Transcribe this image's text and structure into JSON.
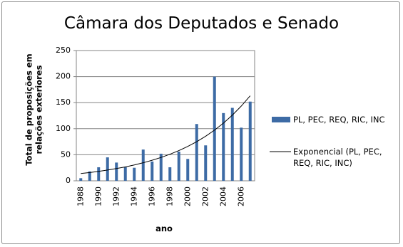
{
  "chart_data": {
    "type": "bar",
    "title": "Câmara dos Deputados e Senado",
    "x_label": "ano",
    "y_label": "Total de proposições em relações exteriores",
    "categories": [
      "1988",
      null,
      "1990",
      null,
      "1992",
      null,
      "1994",
      null,
      "1996",
      null,
      "1998",
      null,
      "2000",
      null,
      "2002",
      null,
      "2004",
      null,
      "2006",
      null
    ],
    "series": [
      {
        "name": "PL, PEC, REQ, RIC, INC",
        "type": "bar",
        "color": "#3d6ba5",
        "values": [
          5,
          18,
          26,
          45,
          35,
          26,
          25,
          60,
          37,
          52,
          26,
          56,
          42,
          109,
          68,
          200,
          130,
          140,
          102,
          152
        ]
      },
      {
        "name": "Exponencial (PL, PEC, REQ, RIC, INC)",
        "type": "line",
        "color": "#000000",
        "values": [
          14,
          15.9,
          18.1,
          20.6,
          23.5,
          26.7,
          30.4,
          34.6,
          39.4,
          44.8,
          51,
          58,
          66,
          75.1,
          85.5,
          97.3,
          110.7,
          126,
          143.4,
          163.2
        ]
      }
    ],
    "ylim": [
      0,
      250
    ],
    "yticks": [
      0,
      50,
      100,
      150,
      200,
      250
    ],
    "grid": true,
    "legend": "right"
  }
}
